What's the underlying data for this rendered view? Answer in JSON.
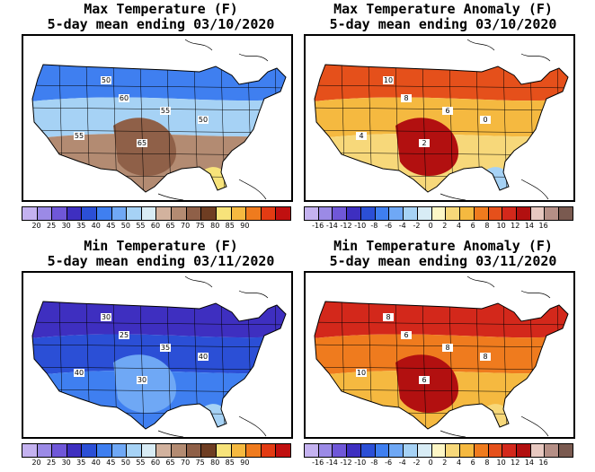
{
  "panels": [
    {
      "title_line1": "Max Temperature (F)",
      "title_line2": "5-day mean ending 03/10/2020",
      "colorbar_colors": [
        "#c4b2f0",
        "#9b8ae6",
        "#6f57d8",
        "#3e2fc0",
        "#2b4fd6",
        "#3f7ff0",
        "#6fa8f5",
        "#a6d2f5",
        "#d8ecf5",
        "#d2b29e",
        "#b38b72",
        "#8f6048",
        "#6e3d22",
        "#f7e37a",
        "#f5b940",
        "#ef7b1e",
        "#e33b13",
        "#c01010"
      ],
      "colorbar_ticks": [
        "20",
        "25",
        "30",
        "35",
        "40",
        "45",
        "50",
        "55",
        "60",
        "65",
        "70",
        "75",
        "80",
        "85",
        "90"
      ],
      "contour_labels": [
        "50",
        "60",
        "55",
        "55",
        "65",
        "50"
      ],
      "fill": {
        "north": "#3f7ff0",
        "mid": "#a6d2f5",
        "south": "#b38b72",
        "hot": "#8f6048",
        "warm": "#f7e37a"
      }
    },
    {
      "title_line1": "Max Temperature Anomaly (F)",
      "title_line2": "5-day mean ending 03/10/2020",
      "colorbar_colors": [
        "#c4b2f0",
        "#9b8ae6",
        "#6f57d8",
        "#3e2fc0",
        "#2b4fd6",
        "#3f7ff0",
        "#6fa8f5",
        "#a6d2f5",
        "#d8ecf5",
        "#fdf7c6",
        "#f7d87a",
        "#f5b940",
        "#ef7b1e",
        "#e5501b",
        "#d3281b",
        "#b21010",
        "#e7c8c0",
        "#b58f86",
        "#7a5a50"
      ],
      "colorbar_ticks": [
        "-16",
        "-14",
        "-12",
        "-10",
        "-8",
        "-6",
        "-4",
        "-2",
        "0",
        "2",
        "4",
        "6",
        "8",
        "10",
        "12",
        "14",
        "16"
      ],
      "contour_labels": [
        "10",
        "8",
        "6",
        "4",
        "2",
        "0"
      ],
      "fill": {
        "north": "#e5501b",
        "mid": "#f5b940",
        "south": "#f7d87a",
        "hot": "#b21010",
        "warm": "#a6d2f5"
      }
    },
    {
      "title_line1": "Min Temperature (F)",
      "title_line2": "5-day mean ending 03/11/2020",
      "colorbar_colors": [
        "#c4b2f0",
        "#9b8ae6",
        "#6f57d8",
        "#3e2fc0",
        "#2b4fd6",
        "#3f7ff0",
        "#6fa8f5",
        "#a6d2f5",
        "#d8ecf5",
        "#d2b29e",
        "#b38b72",
        "#8f6048",
        "#6e3d22",
        "#f7e37a",
        "#f5b940",
        "#ef7b1e",
        "#e33b13",
        "#c01010"
      ],
      "colorbar_ticks": [
        "20",
        "25",
        "30",
        "35",
        "40",
        "45",
        "50",
        "55",
        "60",
        "65",
        "70",
        "75",
        "80",
        "85",
        "90"
      ],
      "contour_labels": [
        "30",
        "25",
        "35",
        "40",
        "30",
        "40"
      ],
      "fill": {
        "north": "#3e2fc0",
        "mid": "#2b4fd6",
        "south": "#3f7ff0",
        "hot": "#6fa8f5",
        "warm": "#a6d2f5"
      }
    },
    {
      "title_line1": "Min Temperature Anomaly (F)",
      "title_line2": "5-day mean ending 03/11/2020",
      "colorbar_colors": [
        "#c4b2f0",
        "#9b8ae6",
        "#6f57d8",
        "#3e2fc0",
        "#2b4fd6",
        "#3f7ff0",
        "#6fa8f5",
        "#a6d2f5",
        "#d8ecf5",
        "#fdf7c6",
        "#f7d87a",
        "#f5b940",
        "#ef7b1e",
        "#e5501b",
        "#d3281b",
        "#b21010",
        "#e7c8c0",
        "#b58f86",
        "#7a5a50"
      ],
      "colorbar_ticks": [
        "-16",
        "-14",
        "-12",
        "-10",
        "-8",
        "-6",
        "-4",
        "-2",
        "0",
        "2",
        "4",
        "6",
        "8",
        "10",
        "12",
        "14",
        "16"
      ],
      "contour_labels": [
        "8",
        "6",
        "8",
        "10",
        "6",
        "8"
      ],
      "fill": {
        "north": "#d3281b",
        "mid": "#ef7b1e",
        "south": "#f5b940",
        "hot": "#b21010",
        "warm": "#f7d87a"
      }
    }
  ]
}
